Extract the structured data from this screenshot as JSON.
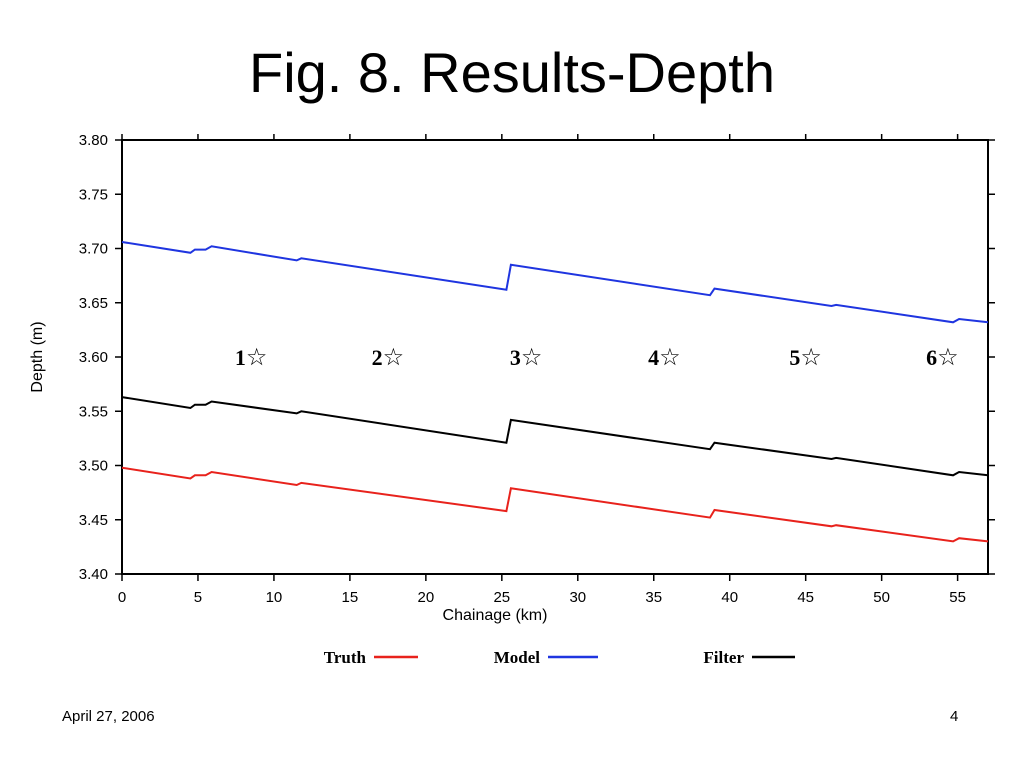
{
  "slide": {
    "title": "Fig. 8. Results-Depth",
    "date": "April 27, 2006",
    "page_number": "4"
  },
  "chart_data": {
    "type": "line",
    "title": "",
    "xlabel": "Chainage (km)",
    "ylabel": "Depth (m)",
    "xlim": [
      0,
      57
    ],
    "ylim": [
      3.4,
      3.8
    ],
    "x_ticks": [
      0,
      5,
      10,
      15,
      20,
      25,
      30,
      35,
      40,
      45,
      50,
      55
    ],
    "x_tick_labels": [
      "0",
      "5",
      "10",
      "15",
      "20",
      "25",
      "30",
      "35",
      "40",
      "45",
      "50",
      "55"
    ],
    "y_ticks": [
      3.4,
      3.45,
      3.5,
      3.55,
      3.6,
      3.65,
      3.7,
      3.75,
      3.8
    ],
    "y_tick_labels": [
      "3.40",
      "3.45",
      "3.50",
      "3.55",
      "3.60",
      "3.65",
      "3.70",
      "3.75",
      "3.80"
    ],
    "grid": false,
    "legend_position": "bottom",
    "series": [
      {
        "name": "Model",
        "color": "#1f35e0",
        "x": [
          0,
          4.5,
          4.8,
          5.5,
          5.9,
          11.5,
          11.8,
          25.3,
          25.6,
          38.7,
          39.0,
          46.7,
          47.0,
          54.7,
          55.1,
          57
        ],
        "y": [
          3.706,
          3.696,
          3.699,
          3.699,
          3.702,
          3.689,
          3.691,
          3.662,
          3.685,
          3.657,
          3.663,
          3.647,
          3.648,
          3.632,
          3.635,
          3.632
        ]
      },
      {
        "name": "Filter",
        "color": "#000000",
        "x": [
          0,
          4.5,
          4.8,
          5.5,
          5.9,
          11.5,
          11.8,
          25.3,
          25.6,
          38.7,
          39.0,
          46.7,
          47.0,
          54.7,
          55.1,
          57
        ],
        "y": [
          3.563,
          3.553,
          3.556,
          3.556,
          3.559,
          3.548,
          3.55,
          3.521,
          3.542,
          3.515,
          3.521,
          3.506,
          3.507,
          3.491,
          3.494,
          3.491
        ]
      },
      {
        "name": "Truth",
        "color": "#e8221c",
        "x": [
          0,
          4.5,
          4.8,
          5.5,
          5.9,
          11.5,
          11.8,
          25.3,
          25.6,
          38.7,
          39.0,
          46.7,
          47.0,
          54.7,
          55.1,
          57
        ],
        "y": [
          3.498,
          3.488,
          3.491,
          3.491,
          3.494,
          3.482,
          3.484,
          3.458,
          3.479,
          3.452,
          3.459,
          3.444,
          3.445,
          3.43,
          3.433,
          3.43
        ]
      }
    ],
    "annotations": [
      {
        "label": "1",
        "symbol": "☆",
        "x": 8.5,
        "y": 3.6
      },
      {
        "label": "2",
        "symbol": "☆",
        "x": 17.5,
        "y": 3.6
      },
      {
        "label": "3",
        "symbol": "☆",
        "x": 26.6,
        "y": 3.6
      },
      {
        "label": "4",
        "symbol": "☆",
        "x": 35.7,
        "y": 3.6
      },
      {
        "label": "5",
        "symbol": "☆",
        "x": 45.0,
        "y": 3.6
      },
      {
        "label": "6",
        "symbol": "☆",
        "x": 54.0,
        "y": 3.6
      }
    ],
    "legend": [
      {
        "label": "Truth",
        "color": "#e8221c"
      },
      {
        "label": "Model",
        "color": "#1f35e0"
      },
      {
        "label": "Filter",
        "color": "#000000"
      }
    ]
  }
}
